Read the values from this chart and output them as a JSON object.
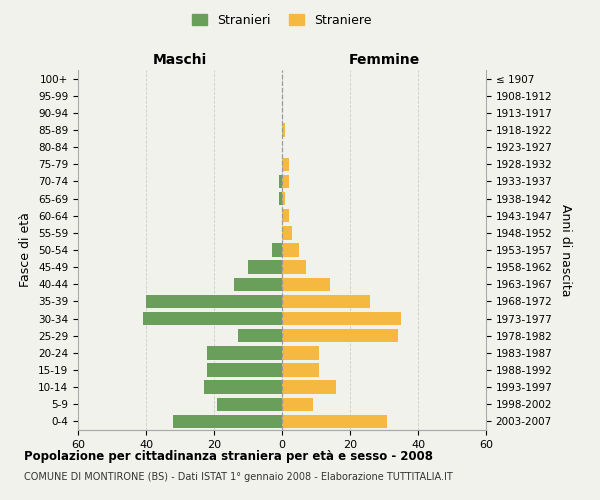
{
  "age_groups_bottom_to_top": [
    "0-4",
    "5-9",
    "10-14",
    "15-19",
    "20-24",
    "25-29",
    "30-34",
    "35-39",
    "40-44",
    "45-49",
    "50-54",
    "55-59",
    "60-64",
    "65-69",
    "70-74",
    "75-79",
    "80-84",
    "85-89",
    "90-94",
    "95-99",
    "100+"
  ],
  "birth_years_bottom_to_top": [
    "2003-2007",
    "1998-2002",
    "1993-1997",
    "1988-1992",
    "1983-1987",
    "1978-1982",
    "1973-1977",
    "1968-1972",
    "1963-1967",
    "1958-1962",
    "1953-1957",
    "1948-1952",
    "1943-1947",
    "1938-1942",
    "1933-1937",
    "1928-1932",
    "1923-1927",
    "1918-1922",
    "1913-1917",
    "1908-1912",
    "≤ 1907"
  ],
  "males_bottom_to_top": [
    32,
    19,
    23,
    22,
    22,
    13,
    41,
    40,
    14,
    10,
    3,
    0,
    0,
    1,
    1,
    0,
    0,
    0,
    0,
    0,
    0
  ],
  "females_bottom_to_top": [
    31,
    9,
    16,
    11,
    11,
    34,
    35,
    26,
    14,
    7,
    5,
    3,
    2,
    1,
    2,
    2,
    0,
    1,
    0,
    0,
    0
  ],
  "male_color": "#6a9e5b",
  "female_color": "#f5b942",
  "background_color": "#f2f2ed",
  "grid_color": "#cccccc",
  "bar_height": 0.78,
  "xlim": 60,
  "title": "Popolazione per cittadinanza straniera per età e sesso - 2008",
  "subtitle": "COMUNE DI MONTIRONE (BS) - Dati ISTAT 1° gennaio 2008 - Elaborazione TUTTITALIA.IT",
  "xlabel_left": "Maschi",
  "xlabel_right": "Femmine",
  "ylabel": "Fasce di età",
  "ylabel_right": "Anni di nascita",
  "legend_stranieri": "Stranieri",
  "legend_straniere": "Straniere",
  "xticks": [
    -60,
    -40,
    -20,
    0,
    20,
    40,
    60
  ],
  "xtick_labels": [
    "60",
    "40",
    "20",
    "0",
    "20",
    "40",
    "60"
  ]
}
